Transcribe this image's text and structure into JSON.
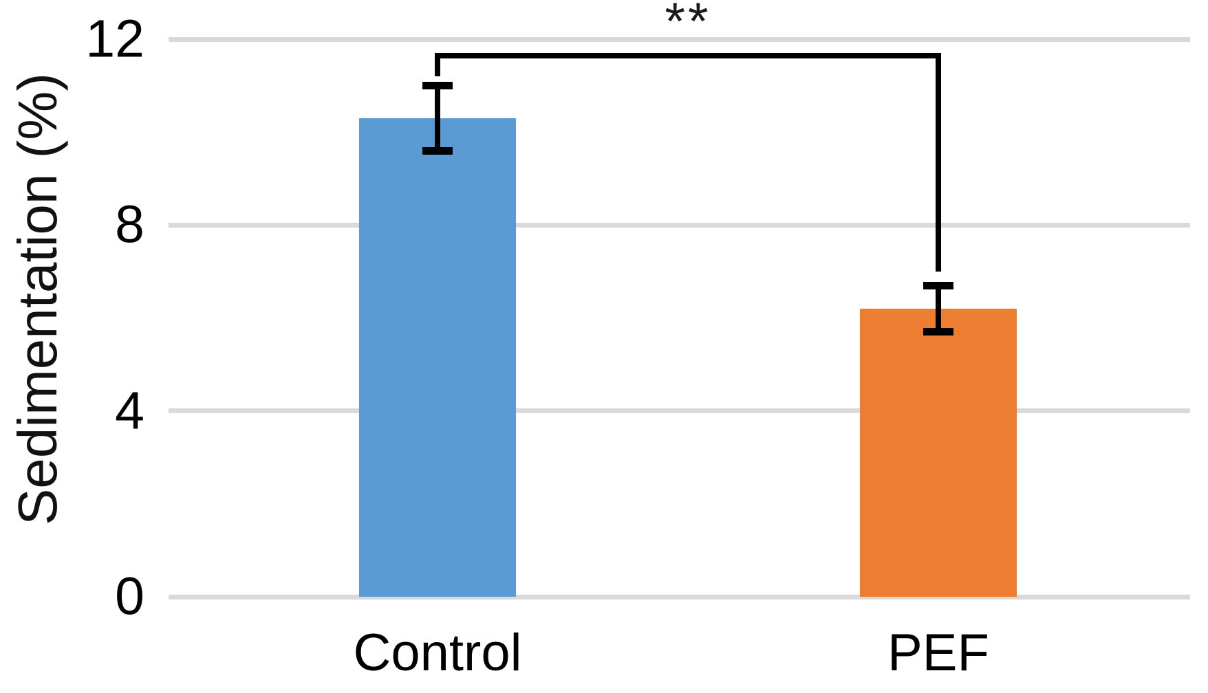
{
  "figure": {
    "background_color": "#ffffff",
    "text_color": "#000000"
  },
  "chart_data": {
    "type": "bar",
    "title": "",
    "xlabel": "",
    "ylabel": "Sedimentation (%)",
    "categories": [
      "Control",
      "PEF"
    ],
    "values": [
      10.3,
      6.2
    ],
    "errors": [
      0.7,
      0.5
    ],
    "bar_colors": [
      "#5B9BD5",
      "#ED7D31"
    ],
    "error_bar_color": "#000000",
    "ylim": [
      0,
      12
    ],
    "yticks": [
      0,
      4,
      8,
      12
    ],
    "ytick_labels": [
      "0",
      "4",
      "8",
      "12"
    ],
    "grid": true,
    "gridline_color": "#D9D9D9",
    "legend": "none",
    "significance": {
      "label": "**",
      "between": [
        "Control",
        "PEF"
      ],
      "bracket_top_value": 11.7,
      "left_drop_to_value": 11.2,
      "right_drop_to_value": 7.0
    }
  }
}
